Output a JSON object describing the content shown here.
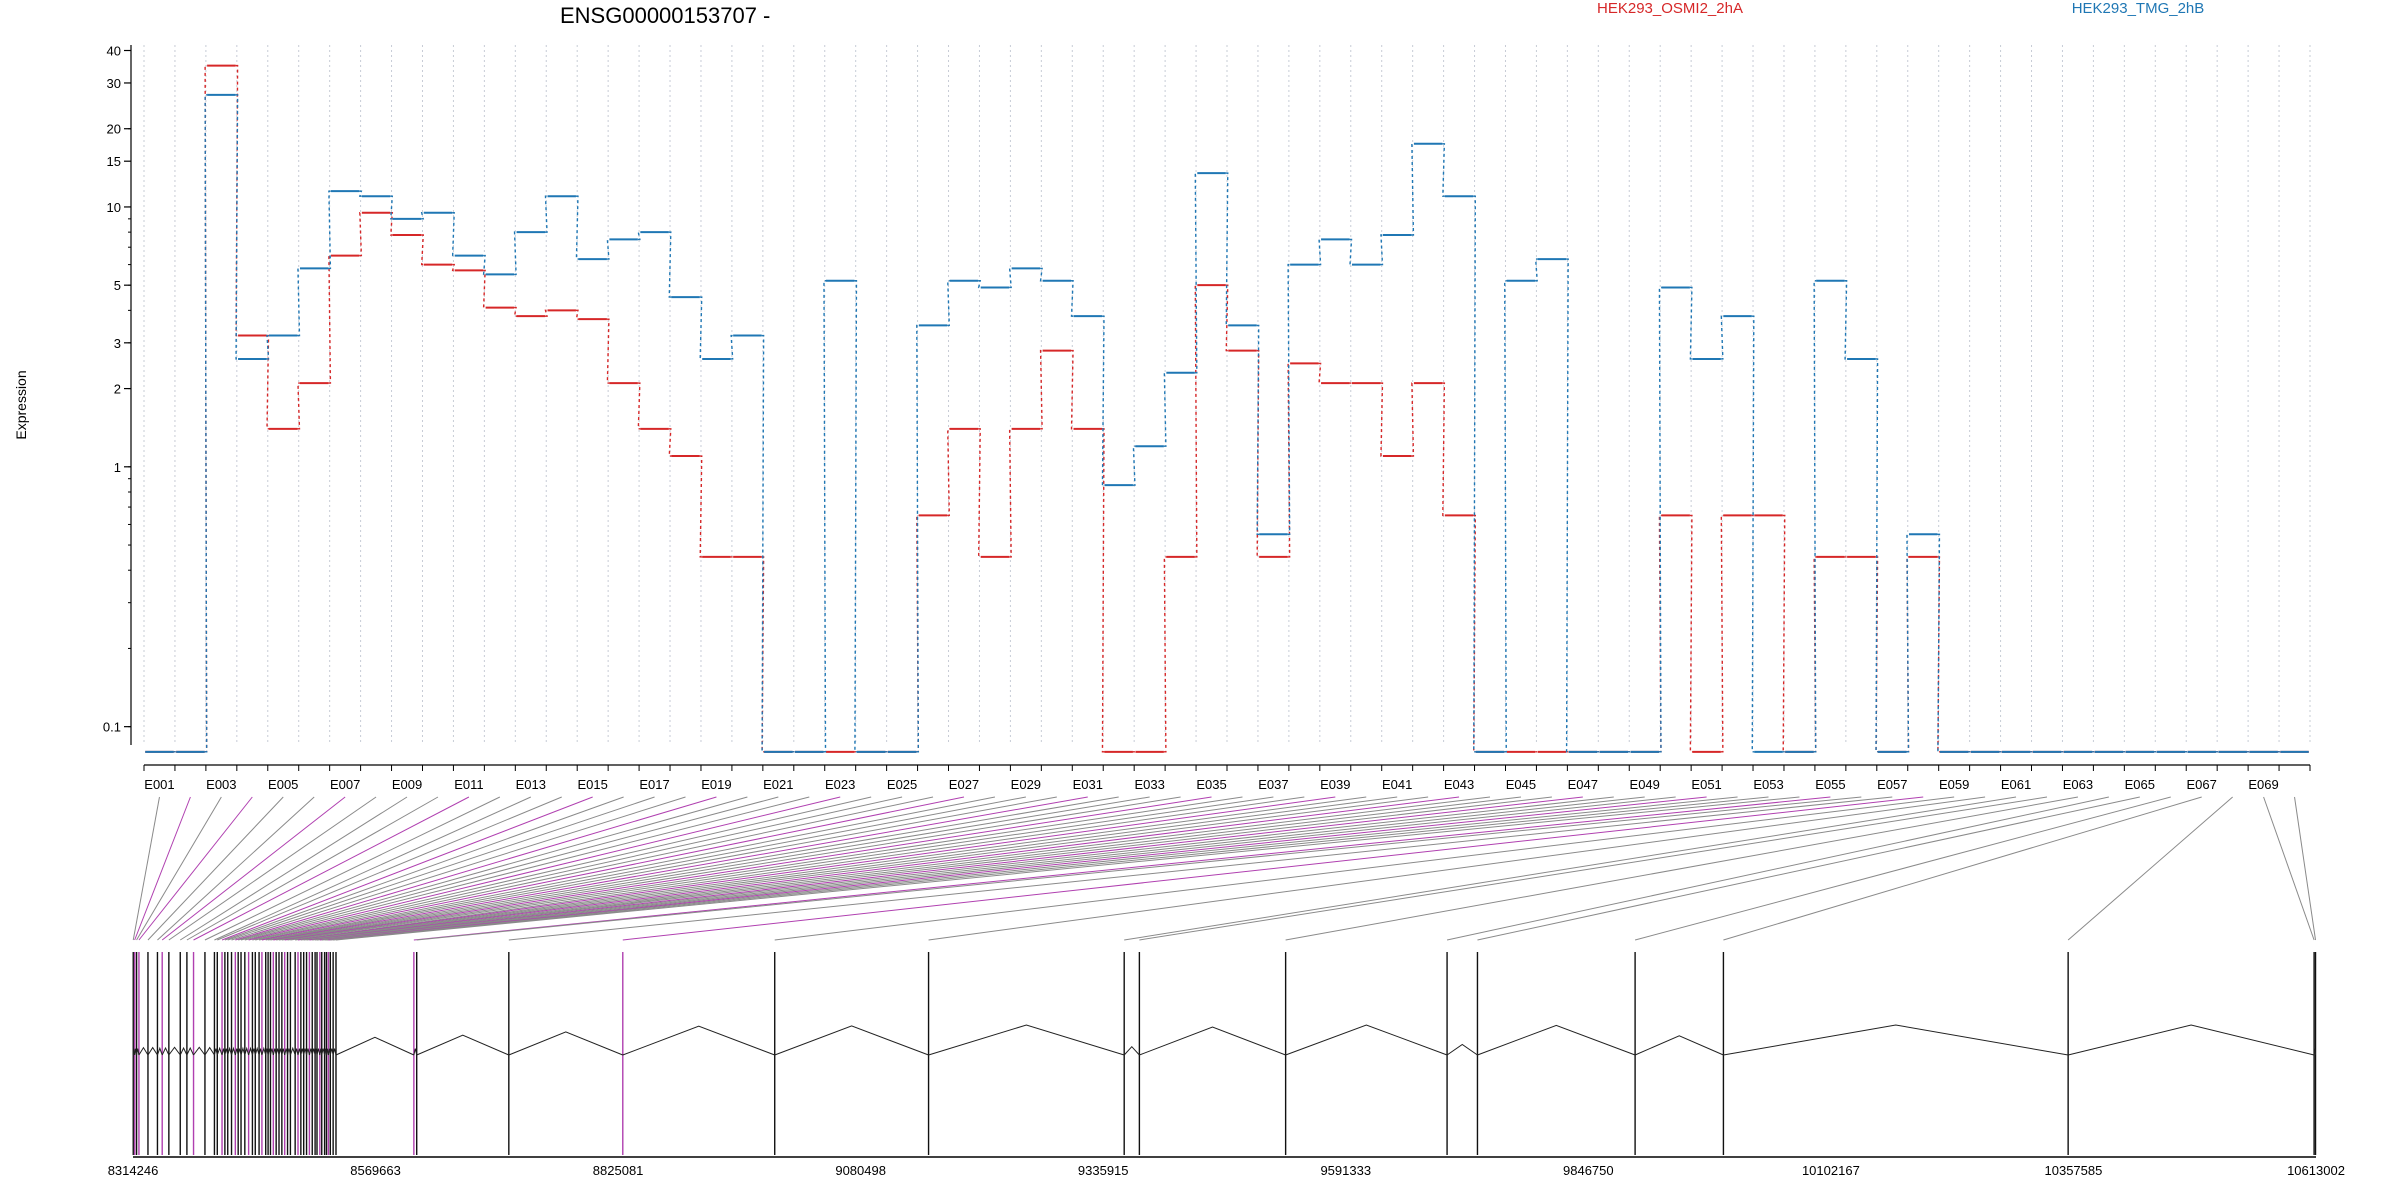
{
  "chart_data": {
    "type": "line",
    "title": "ENSG00000153707 -",
    "xlabel": "",
    "ylabel": "Expression",
    "yscale": "log",
    "ylim": [
      0.085,
      42
    ],
    "y_ticks": [
      0.1,
      1,
      2,
      3,
      5,
      10,
      15,
      20,
      30,
      40
    ],
    "y_tick_labels": [
      "0.1",
      "1",
      "2",
      "3",
      "5",
      "10",
      "15",
      "20",
      "30",
      "40"
    ],
    "grid": "vertical dotted lines at exon boundaries",
    "legend_placement": "top",
    "categories": [
      "E001",
      "E002",
      "E003",
      "E004",
      "E005",
      "E006",
      "E007",
      "E008",
      "E009",
      "E010",
      "E011",
      "E012",
      "E013",
      "E014",
      "E015",
      "E016",
      "E017",
      "E018",
      "E019",
      "E020",
      "E021",
      "E022",
      "E023",
      "E024",
      "E025",
      "E026",
      "E027",
      "E028",
      "E029",
      "E030",
      "E031",
      "E032",
      "E033",
      "E034",
      "E035",
      "E036",
      "E037",
      "E038",
      "E039",
      "E040",
      "E041",
      "E042",
      "E043",
      "E044",
      "E045",
      "E046",
      "E047",
      "E048",
      "E049",
      "E050",
      "E051",
      "E052",
      "E053",
      "E054",
      "E055",
      "E056",
      "E057",
      "E058",
      "E059",
      "E060",
      "E061",
      "E062",
      "E063",
      "E064",
      "E065",
      "E066",
      "E067",
      "E068",
      "E069",
      "E070"
    ],
    "x_tick_labels": [
      "E001",
      "E003",
      "E005",
      "E007",
      "E009",
      "E011",
      "E013",
      "E015",
      "E017",
      "E019",
      "E021",
      "E023",
      "E025",
      "E027",
      "E029",
      "E031",
      "E033",
      "E035",
      "E037",
      "E039",
      "E041",
      "E043",
      "E045",
      "E047",
      "E049",
      "E051",
      "E053",
      "E055",
      "E057",
      "E059",
      "E061",
      "E063",
      "E065",
      "E067",
      "E069"
    ],
    "series": [
      {
        "name": "HEK293_OSMI2_2hA",
        "color": "#d62728",
        "values": [
          0.08,
          0.08,
          35,
          3.2,
          1.4,
          2.1,
          6.5,
          9.5,
          7.8,
          6.0,
          5.7,
          4.1,
          3.8,
          4.0,
          3.7,
          2.1,
          1.4,
          1.1,
          0.45,
          0.45,
          0.08,
          0.08,
          0.08,
          0.08,
          0.08,
          0.65,
          1.4,
          0.45,
          1.4,
          2.8,
          1.4,
          0.08,
          0.08,
          0.45,
          5.0,
          2.8,
          0.45,
          2.5,
          2.1,
          2.1,
          1.1,
          2.1,
          0.65,
          0.08,
          0.08,
          0.08,
          0.08,
          0.08,
          0.08,
          0.65,
          0.08,
          0.65,
          0.65,
          0.08,
          0.45,
          0.45,
          0.08,
          0.45,
          0.08,
          0.08,
          0.08,
          0.08,
          0.08,
          0.08,
          0.08,
          0.08,
          0.08,
          0.08,
          0.08,
          0.08
        ]
      },
      {
        "name": "HEK293_TMG_2hB",
        "color": "#1f77b4",
        "values": [
          0.08,
          0.08,
          27,
          2.6,
          3.2,
          5.8,
          11.5,
          11,
          9.0,
          9.5,
          6.5,
          5.5,
          8.0,
          11,
          6.3,
          7.5,
          8.0,
          4.5,
          2.6,
          3.2,
          0.08,
          0.08,
          5.2,
          0.08,
          0.08,
          3.5,
          5.2,
          4.9,
          5.8,
          5.2,
          3.8,
          0.85,
          1.2,
          2.3,
          13.5,
          3.5,
          0.55,
          6.0,
          7.5,
          6.0,
          7.8,
          17.5,
          11,
          0.08,
          5.2,
          6.3,
          0.08,
          0.08,
          0.08,
          4.9,
          2.6,
          3.8,
          0.08,
          0.08,
          5.2,
          2.6,
          0.08,
          0.55,
          0.08,
          0.08,
          0.08,
          0.08,
          0.08,
          0.08,
          0.08,
          0.08,
          0.08,
          0.08,
          0.08,
          0.08
        ]
      }
    ],
    "genomic_axis": {
      "labels": [
        "8314246",
        "8569663",
        "8825081",
        "9080498",
        "9335915",
        "9591333",
        "9846750",
        "10102167",
        "10357585",
        "10613002"
      ],
      "range": [
        8314246,
        10613002
      ],
      "exon_positions": [
        8314500,
        8316000,
        8318000,
        8320500,
        8330000,
        8340000,
        8345000,
        8352000,
        8364000,
        8371000,
        8378000,
        8390000,
        8400000,
        8403000,
        8408000,
        8411000,
        8414000,
        8418000,
        8422000,
        8425000,
        8428000,
        8432000,
        8436000,
        8440000,
        8443000,
        8447000,
        8450000,
        8454000,
        8456500,
        8459000,
        8462000,
        8465000,
        8468000,
        8471000,
        8474000,
        8477000,
        8480000,
        8485000,
        8488000,
        8491000,
        8494000,
        8497000,
        8500000,
        8503000,
        8506000,
        8508000,
        8511000,
        8513000,
        8516000,
        8518000,
        8520000,
        8522000,
        8525000,
        8528000,
        8610000,
        8613000,
        8710000,
        8830000,
        8990000,
        9152000,
        9358000,
        9374000,
        9528000,
        9698000,
        9730000,
        9896000,
        9989000,
        10352000,
        10611000,
        10612500
      ],
      "highlighted_exons": [
        1,
        3,
        6,
        10,
        14,
        18,
        22,
        26,
        30,
        34,
        38,
        42,
        46,
        50,
        54,
        57
      ],
      "highlight_color": "#b040b0"
    }
  }
}
